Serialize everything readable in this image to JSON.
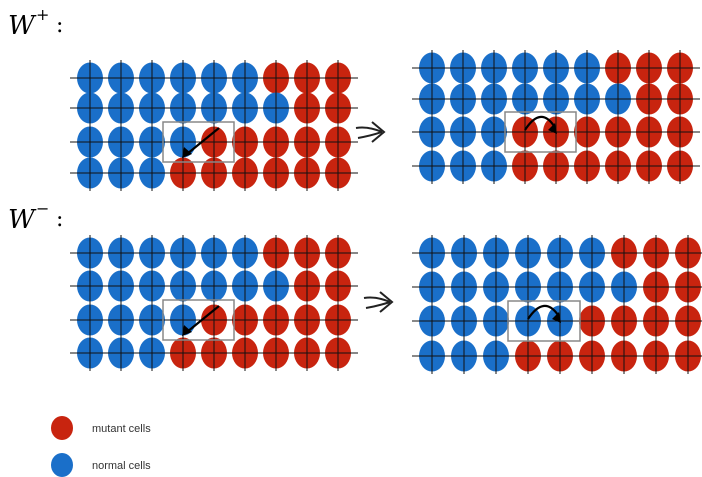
{
  "panels": [
    {
      "symbol": "W",
      "sign": "+",
      "colon": ":"
    },
    {
      "symbol": "W",
      "sign": "−",
      "colon": ":"
    }
  ],
  "legend": [
    {
      "label": "mutant cells",
      "color": "#c8240f"
    },
    {
      "label": "normal cells",
      "color": "#1a6fc9"
    }
  ]
}
